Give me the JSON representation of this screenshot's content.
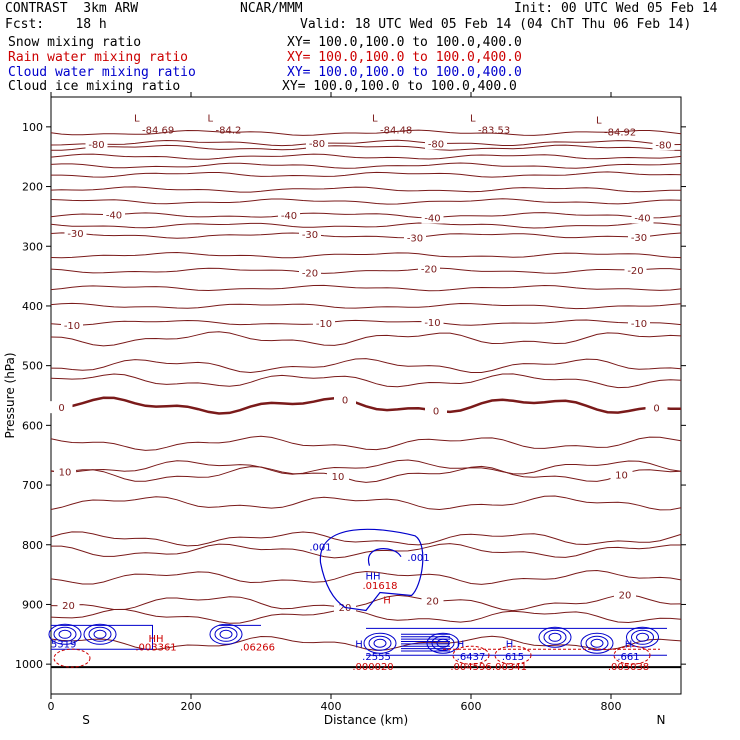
{
  "header": {
    "title": "CONTRAST  3km ARW",
    "center": "NCAR/MMM",
    "init": "Init: 00 UTC Wed 05 Feb 14",
    "fcst": "Fcst:    18 h",
    "valid": "Valid: 18 UTC Wed 05 Feb 14 (04 ChT Thu 06 Feb 14)",
    "fields": [
      {
        "label": "Snow mixing ratio",
        "xy": "XY= 100.0,100.0 to 100.0,400.0",
        "color": "#000000"
      },
      {
        "label": "Rain water mixing ratio",
        "xy": "XY= 100.0,100.0 to 100.0,400.0",
        "color": "#cc0000"
      },
      {
        "label": "Cloud water mixing ratio",
        "xy": "XY= 100.0,100.0 to 100.0,400.0",
        "color": "#0000cc"
      },
      {
        "label": "Cloud ice mixing ratio",
        "xy": "XY= 100.0,100.0 to 100.0,400.0",
        "color": "#000000"
      }
    ]
  },
  "chart_data": {
    "type": "contour-cross-section",
    "xlabel": "Distance (km)",
    "ylabel": "Pressure (hPa)",
    "xlim": [
      0,
      900
    ],
    "ylim": [
      1050,
      50
    ],
    "x_ticks": [
      0,
      200,
      400,
      600,
      800
    ],
    "y_ticks": [
      100,
      200,
      300,
      400,
      500,
      600,
      700,
      800,
      900,
      1000
    ],
    "left_end_label": "S",
    "right_end_label": "N",
    "temperature_contours": [
      {
        "level": -80,
        "label_positions_km": [
          65,
          380,
          550,
          875
        ],
        "mean_p": 127
      },
      {
        "level": -40,
        "label_positions_km": [
          90,
          340,
          545,
          845
        ],
        "mean_p": 248
      },
      {
        "level": -30,
        "label_positions_km": [
          35,
          370,
          520,
          840
        ],
        "mean_p": 282
      },
      {
        "level": -20,
        "label_positions_km": [
          370,
          540,
          835
        ],
        "mean_p": 341
      },
      {
        "level": -10,
        "label_positions_km": [
          30,
          390,
          545,
          840
        ],
        "mean_p": 428
      },
      {
        "level": 0,
        "label_positions_km": [
          15,
          420,
          550,
          865
        ],
        "mean_p": 567
      },
      {
        "level": 10,
        "label_positions_km": [
          20,
          410,
          815
        ],
        "mean_p": 682
      },
      {
        "level": 20,
        "label_positions_km": [
          25,
          420,
          545,
          820
        ],
        "mean_p": 897
      }
    ],
    "lows": [
      {
        "x_km": 130,
        "p": 103,
        "value": "-84.69"
      },
      {
        "x_km": 235,
        "p": 103,
        "value": "-84.2"
      },
      {
        "x_km": 470,
        "p": 103,
        "value": "-84.48"
      },
      {
        "x_km": 610,
        "p": 103,
        "value": "-83.53"
      },
      {
        "x_km": 790,
        "p": 106,
        "value": "-84.92"
      }
    ],
    "cloud_water": {
      "color": "#0000cc",
      "labels": [
        {
          "x_km": 385,
          "p": 810,
          "text": ".001"
        },
        {
          "x_km": 525,
          "p": 827,
          "text": ".001"
        },
        {
          "x_km": 18,
          "p": 972,
          "text": "5319"
        },
        {
          "x_km": 460,
          "p": 858,
          "text": "HH"
        },
        {
          "x_km": 440,
          "p": 972,
          "text": "H"
        },
        {
          "x_km": 585,
          "p": 972,
          "text": "H"
        },
        {
          "x_km": 655,
          "p": 972,
          "text": "H"
        },
        {
          "x_km": 825,
          "p": 972,
          "text": "H"
        },
        {
          "x_km": 465,
          "p": 993,
          "text": ".2555"
        },
        {
          "x_km": 600,
          "p": 993,
          "text": ".6437"
        },
        {
          "x_km": 660,
          "p": 993,
          "text": ".615"
        },
        {
          "x_km": 825,
          "p": 993,
          "text": ".661"
        }
      ]
    },
    "rain_water": {
      "color": "#cc0000",
      "labels": [
        {
          "x_km": 150,
          "p": 963,
          "text": "HH"
        },
        {
          "x_km": 480,
          "p": 898,
          "text": "H"
        },
        {
          "x_km": 460,
          "p": 1010,
          "text": ".000020"
        },
        {
          "x_km": 600,
          "p": 1010,
          "text": ".004596"
        },
        {
          "x_km": 655,
          "p": 1010,
          "text": ".00341"
        },
        {
          "x_km": 825,
          "p": 1010,
          "text": ".005038"
        },
        {
          "x_km": 150,
          "p": 977,
          "text": ".003361"
        },
        {
          "x_km": 295,
          "p": 977,
          "text": ".06266"
        },
        {
          "x_km": 470,
          "p": 874,
          "text": ".01618"
        }
      ]
    },
    "ground_p": 1005
  }
}
